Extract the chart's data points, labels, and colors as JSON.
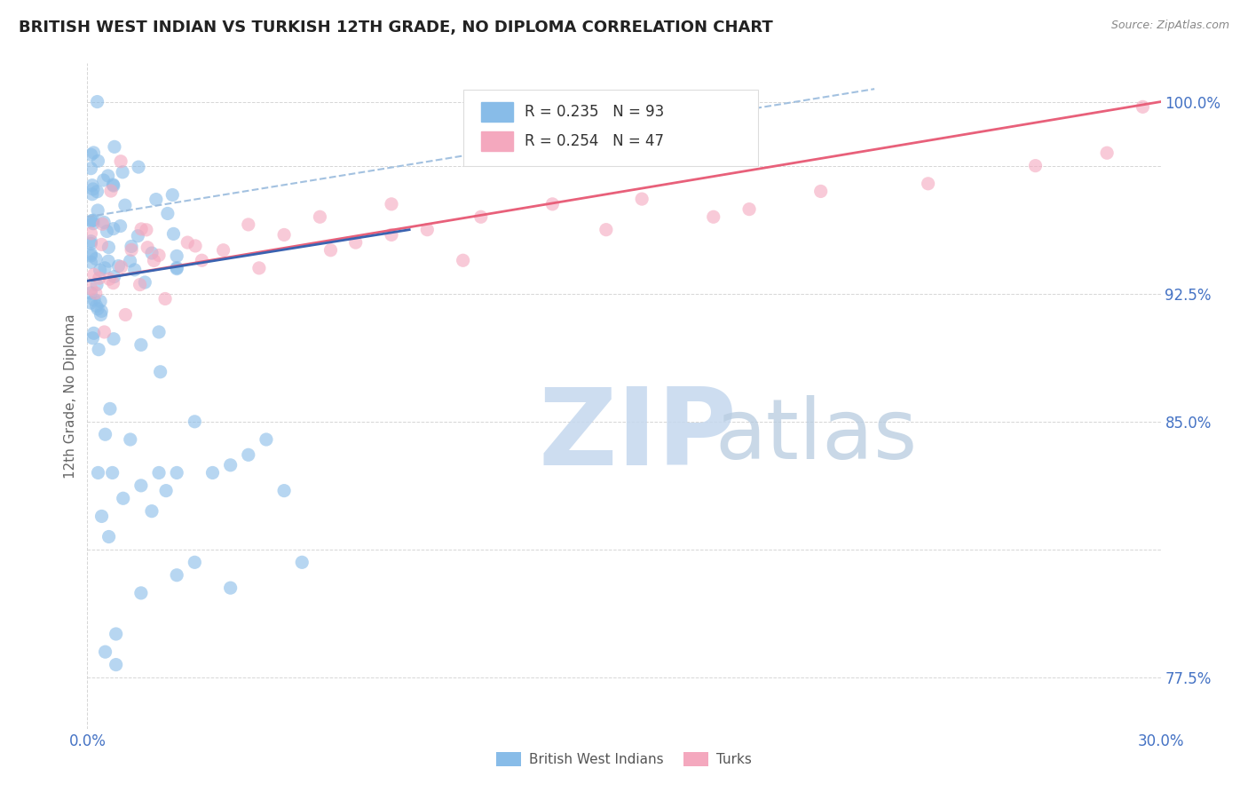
{
  "title": "BRITISH WEST INDIAN VS TURKISH 12TH GRADE, NO DIPLOMA CORRELATION CHART",
  "source_text": "Source: ZipAtlas.com",
  "ylabel": "12th Grade, No Diploma",
  "xlim": [
    0.0,
    0.3
  ],
  "ylim": [
    0.755,
    1.015
  ],
  "xtick_vals": [
    0.0,
    0.3
  ],
  "xticklabels": [
    "0.0%",
    "30.0%"
  ],
  "ytick_vals": [
    0.775,
    0.825,
    0.875,
    0.925,
    0.975,
    1.0
  ],
  "yticklabels": [
    "77.5%",
    "",
    "85.0%",
    "92.5%",
    "",
    "100.0%"
  ],
  "blue_color": "#88bce8",
  "pink_color": "#f4a8be",
  "trend_blue_color": "#3a62b0",
  "trend_pink_color": "#e8607a",
  "dash_color": "#99bbdd",
  "legend_r1": "R = 0.235",
  "legend_n1": "N = 93",
  "legend_r2": "R = 0.254",
  "legend_n2": "N = 47",
  "scatter_size": 120,
  "scatter_alpha": 0.6,
  "watermark_zip_color": "#c8d8ec",
  "watermark_atlas_color": "#c0cce0",
  "title_color": "#222222",
  "source_color": "#888888",
  "tick_color": "#4472c4",
  "ylabel_color": "#666666"
}
